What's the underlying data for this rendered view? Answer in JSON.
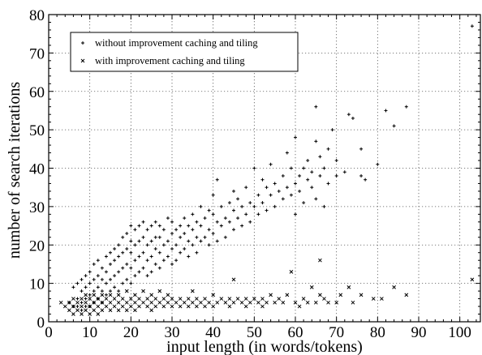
{
  "chart_data": {
    "type": "scatter",
    "title": "",
    "xlabel": "input length (in words/tokens)",
    "ylabel": "number of search iterations",
    "xlim": [
      0,
      105
    ],
    "ylim": [
      0,
      80
    ],
    "xticks": [
      0,
      10,
      20,
      30,
      40,
      50,
      60,
      70,
      80,
      90,
      100
    ],
    "yticks": [
      0,
      10,
      20,
      30,
      40,
      50,
      60,
      70,
      80
    ],
    "grid": true,
    "legend_position": "top-left",
    "series": [
      {
        "name": "without improvement caching and tiling",
        "marker": "plus",
        "color": "#000000",
        "points": [
          [
            5,
            5
          ],
          [
            6,
            4
          ],
          [
            6,
            9
          ],
          [
            7,
            4
          ],
          [
            7,
            6
          ],
          [
            7,
            10
          ],
          [
            8,
            3
          ],
          [
            8,
            5
          ],
          [
            8,
            8
          ],
          [
            8,
            11
          ],
          [
            9,
            4
          ],
          [
            9,
            6
          ],
          [
            9,
            9
          ],
          [
            9,
            12
          ],
          [
            10,
            4
          ],
          [
            10,
            7
          ],
          [
            10,
            10
          ],
          [
            10,
            13
          ],
          [
            11,
            5
          ],
          [
            11,
            8
          ],
          [
            11,
            11
          ],
          [
            11,
            15
          ],
          [
            12,
            6
          ],
          [
            12,
            9
          ],
          [
            12,
            12
          ],
          [
            12,
            16
          ],
          [
            13,
            5
          ],
          [
            13,
            8
          ],
          [
            13,
            11
          ],
          [
            13,
            14
          ],
          [
            14,
            7
          ],
          [
            14,
            10
          ],
          [
            14,
            13
          ],
          [
            14,
            17
          ],
          [
            15,
            8
          ],
          [
            15,
            11
          ],
          [
            15,
            15
          ],
          [
            15,
            18
          ],
          [
            16,
            9
          ],
          [
            16,
            12
          ],
          [
            16,
            16
          ],
          [
            16,
            19
          ],
          [
            17,
            8
          ],
          [
            17,
            13
          ],
          [
            17,
            17
          ],
          [
            17,
            20
          ],
          [
            18,
            10
          ],
          [
            18,
            14
          ],
          [
            18,
            18
          ],
          [
            18,
            22
          ],
          [
            19,
            11
          ],
          [
            19,
            15
          ],
          [
            19,
            19
          ],
          [
            19,
            23
          ],
          [
            20,
            10
          ],
          [
            20,
            14
          ],
          [
            20,
            18
          ],
          [
            20,
            21
          ],
          [
            20,
            25
          ],
          [
            21,
            12
          ],
          [
            21,
            16
          ],
          [
            21,
            20
          ],
          [
            21,
            24
          ],
          [
            22,
            13
          ],
          [
            22,
            17
          ],
          [
            22,
            21
          ],
          [
            22,
            25
          ],
          [
            23,
            14
          ],
          [
            23,
            18
          ],
          [
            23,
            22
          ],
          [
            23,
            26
          ],
          [
            24,
            12
          ],
          [
            24,
            16
          ],
          [
            24,
            20
          ],
          [
            24,
            24
          ],
          [
            25,
            13
          ],
          [
            25,
            17
          ],
          [
            25,
            21
          ],
          [
            25,
            25
          ],
          [
            26,
            15
          ],
          [
            26,
            19
          ],
          [
            26,
            22
          ],
          [
            26,
            26
          ],
          [
            27,
            14
          ],
          [
            27,
            18
          ],
          [
            27,
            22
          ],
          [
            27,
            25
          ],
          [
            28,
            16
          ],
          [
            28,
            20
          ],
          [
            28,
            24
          ],
          [
            29,
            17
          ],
          [
            29,
            21
          ],
          [
            29,
            27
          ],
          [
            30,
            15
          ],
          [
            30,
            19
          ],
          [
            30,
            23
          ],
          [
            30,
            26
          ],
          [
            31,
            16
          ],
          [
            31,
            20
          ],
          [
            31,
            24
          ],
          [
            32,
            18
          ],
          [
            32,
            22
          ],
          [
            32,
            25
          ],
          [
            33,
            19
          ],
          [
            33,
            23
          ],
          [
            33,
            27
          ],
          [
            34,
            17
          ],
          [
            34,
            21
          ],
          [
            34,
            25
          ],
          [
            35,
            20
          ],
          [
            35,
            24
          ],
          [
            35,
            28
          ],
          [
            36,
            18
          ],
          [
            36,
            22
          ],
          [
            36,
            26
          ],
          [
            37,
            21
          ],
          [
            37,
            25
          ],
          [
            37,
            30
          ],
          [
            38,
            22
          ],
          [
            38,
            27
          ],
          [
            39,
            20
          ],
          [
            39,
            24
          ],
          [
            39,
            29
          ],
          [
            40,
            23
          ],
          [
            40,
            28
          ],
          [
            40,
            33
          ],
          [
            41,
            21
          ],
          [
            41,
            26
          ],
          [
            41,
            37
          ],
          [
            42,
            25
          ],
          [
            42,
            30
          ],
          [
            43,
            22
          ],
          [
            43,
            27
          ],
          [
            44,
            26
          ],
          [
            44,
            31
          ],
          [
            45,
            24
          ],
          [
            45,
            29
          ],
          [
            45,
            34
          ],
          [
            46,
            27
          ],
          [
            46,
            32
          ],
          [
            47,
            25
          ],
          [
            47,
            30
          ],
          [
            48,
            28
          ],
          [
            48,
            35
          ],
          [
            49,
            26
          ],
          [
            49,
            31
          ],
          [
            50,
            30
          ],
          [
            50,
            40
          ],
          [
            51,
            28
          ],
          [
            51,
            33
          ],
          [
            52,
            31
          ],
          [
            52,
            37
          ],
          [
            53,
            29
          ],
          [
            53,
            35
          ],
          [
            54,
            33
          ],
          [
            54,
            41
          ],
          [
            55,
            30
          ],
          [
            55,
            36
          ],
          [
            56,
            34
          ],
          [
            57,
            32
          ],
          [
            57,
            38
          ],
          [
            58,
            35
          ],
          [
            58,
            44
          ],
          [
            59,
            33
          ],
          [
            59,
            40
          ],
          [
            60,
            28
          ],
          [
            60,
            36
          ],
          [
            60,
            48
          ],
          [
            61,
            38
          ],
          [
            61,
            34
          ],
          [
            62,
            40
          ],
          [
            62,
            31
          ],
          [
            63,
            37
          ],
          [
            63,
            42
          ],
          [
            64,
            35
          ],
          [
            64,
            39
          ],
          [
            65,
            32
          ],
          [
            65,
            47
          ],
          [
            65,
            56
          ],
          [
            66,
            38
          ],
          [
            66,
            43
          ],
          [
            67,
            30
          ],
          [
            67,
            40
          ],
          [
            68,
            45
          ],
          [
            68,
            36
          ],
          [
            69,
            50
          ],
          [
            70,
            38
          ],
          [
            70,
            42
          ],
          [
            72,
            39
          ],
          [
            73,
            54
          ],
          [
            74,
            53
          ],
          [
            76,
            45
          ],
          [
            76,
            38
          ],
          [
            77,
            37
          ],
          [
            80,
            41
          ],
          [
            82,
            55
          ],
          [
            84,
            51
          ],
          [
            87,
            56
          ],
          [
            103,
            77
          ]
        ]
      },
      {
        "name": "with improvement caching and tiling",
        "marker": "cross",
        "color": "#000000",
        "points": [
          [
            3,
            5
          ],
          [
            4,
            4
          ],
          [
            5,
            3
          ],
          [
            5,
            5
          ],
          [
            6,
            2
          ],
          [
            6,
            4
          ],
          [
            6,
            6
          ],
          [
            7,
            3
          ],
          [
            7,
            5
          ],
          [
            8,
            2
          ],
          [
            8,
            4
          ],
          [
            8,
            6
          ],
          [
            9,
            3
          ],
          [
            9,
            5
          ],
          [
            9,
            7
          ],
          [
            10,
            2
          ],
          [
            10,
            4
          ],
          [
            10,
            6
          ],
          [
            11,
            3
          ],
          [
            11,
            5
          ],
          [
            11,
            7
          ],
          [
            12,
            2
          ],
          [
            12,
            4
          ],
          [
            12,
            6
          ],
          [
            13,
            3
          ],
          [
            13,
            5
          ],
          [
            13,
            7
          ],
          [
            14,
            4
          ],
          [
            14,
            6
          ],
          [
            15,
            3
          ],
          [
            15,
            5
          ],
          [
            15,
            7
          ],
          [
            16,
            4
          ],
          [
            16,
            6
          ],
          [
            17,
            3
          ],
          [
            17,
            5
          ],
          [
            17,
            7
          ],
          [
            18,
            4
          ],
          [
            18,
            6
          ],
          [
            19,
            3
          ],
          [
            19,
            5
          ],
          [
            19,
            8
          ],
          [
            20,
            4
          ],
          [
            20,
            6
          ],
          [
            21,
            3
          ],
          [
            21,
            5
          ],
          [
            21,
            7
          ],
          [
            22,
            4
          ],
          [
            22,
            6
          ],
          [
            23,
            5
          ],
          [
            23,
            8
          ],
          [
            24,
            4
          ],
          [
            24,
            6
          ],
          [
            25,
            3
          ],
          [
            25,
            5
          ],
          [
            25,
            7
          ],
          [
            26,
            4
          ],
          [
            26,
            6
          ],
          [
            27,
            5
          ],
          [
            27,
            8
          ],
          [
            28,
            4
          ],
          [
            28,
            6
          ],
          [
            29,
            5
          ],
          [
            29,
            7
          ],
          [
            30,
            4
          ],
          [
            30,
            6
          ],
          [
            31,
            5
          ],
          [
            32,
            4
          ],
          [
            32,
            6
          ],
          [
            33,
            5
          ],
          [
            34,
            4
          ],
          [
            34,
            6
          ],
          [
            35,
            5
          ],
          [
            35,
            8
          ],
          [
            36,
            4
          ],
          [
            36,
            6
          ],
          [
            37,
            5
          ],
          [
            38,
            4
          ],
          [
            38,
            6
          ],
          [
            39,
            5
          ],
          [
            40,
            4
          ],
          [
            40,
            7
          ],
          [
            41,
            5
          ],
          [
            42,
            6
          ],
          [
            43,
            5
          ],
          [
            44,
            4
          ],
          [
            44,
            6
          ],
          [
            45,
            5
          ],
          [
            46,
            6
          ],
          [
            47,
            5
          ],
          [
            48,
            4
          ],
          [
            48,
            6
          ],
          [
            49,
            5
          ],
          [
            50,
            6
          ],
          [
            51,
            5
          ],
          [
            52,
            4
          ],
          [
            52,
            6
          ],
          [
            53,
            5
          ],
          [
            54,
            7
          ],
          [
            55,
            5
          ],
          [
            56,
            6
          ],
          [
            57,
            5
          ],
          [
            58,
            7
          ],
          [
            59,
            13
          ],
          [
            60,
            5
          ],
          [
            61,
            4
          ],
          [
            62,
            6
          ],
          [
            63,
            5
          ],
          [
            64,
            9
          ],
          [
            65,
            5
          ],
          [
            66,
            7
          ],
          [
            67,
            6
          ],
          [
            68,
            5
          ],
          [
            70,
            5
          ],
          [
            71,
            7
          ],
          [
            73,
            9
          ],
          [
            74,
            5
          ],
          [
            76,
            7
          ],
          [
            79,
            6
          ],
          [
            81,
            6
          ],
          [
            84,
            9
          ],
          [
            87,
            7
          ],
          [
            103,
            11
          ],
          [
            45,
            11
          ],
          [
            66,
            16
          ]
        ]
      }
    ]
  }
}
